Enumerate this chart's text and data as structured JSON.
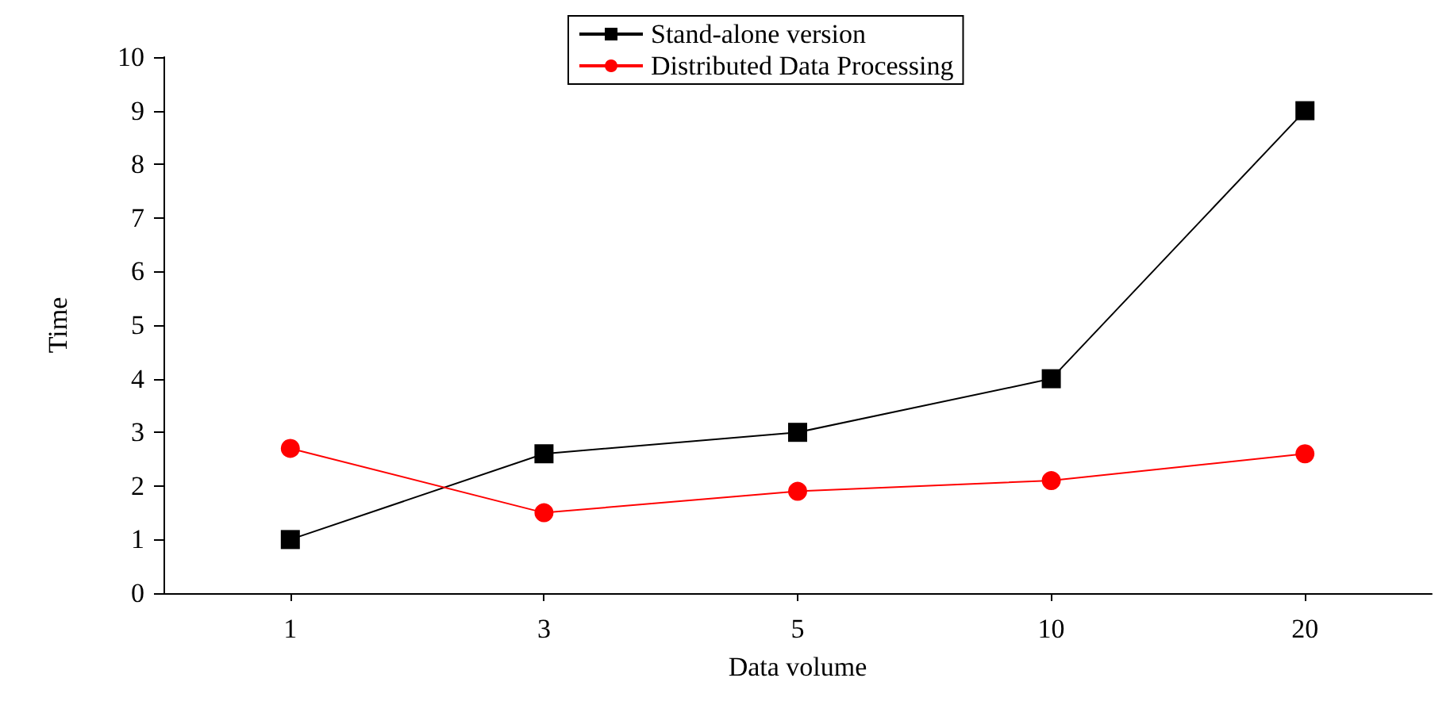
{
  "chart_data": {
    "type": "line",
    "xlabel": "Data volume",
    "ylabel": "Time",
    "categories": [
      "1",
      "3",
      "5",
      "10",
      "20"
    ],
    "series": [
      {
        "name": "Stand-alone version",
        "color": "#000000",
        "marker": "square",
        "values": [
          1,
          2.6,
          3,
          4,
          9
        ]
      },
      {
        "name": "Distributed Data Processing",
        "color": "#ff0000",
        "marker": "circle",
        "values": [
          2.7,
          1.5,
          1.9,
          2.1,
          2.6
        ]
      }
    ],
    "ylim": [
      0,
      10
    ],
    "yticks": [
      0,
      1,
      2,
      3,
      4,
      5,
      6,
      7,
      8,
      9,
      10
    ],
    "grid": false,
    "legend": "top"
  }
}
